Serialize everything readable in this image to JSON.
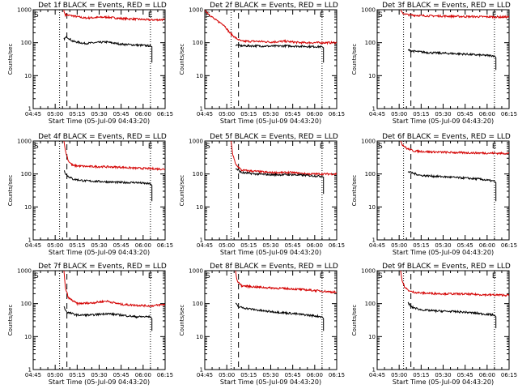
{
  "colors": {
    "events": "#000000",
    "lld": "#d40000",
    "axis": "#000000",
    "background": "#ffffff"
  },
  "chart_data": [
    {
      "type": "line",
      "title": "Det 1f BLACK = Events, RED = LLD",
      "xlabel": "Start Time (05-Jul-09 04:43:20)",
      "ylabel": "Counts/sec",
      "xticks": [
        "04:45",
        "05:00",
        "05:15",
        "05:30",
        "05:45",
        "06:00",
        "06:15"
      ],
      "yticks": [
        "1",
        "10",
        "100",
        "1000"
      ],
      "yscale": "log",
      "ylim": [
        1,
        1000
      ],
      "markers": {
        "start": "S",
        "end": "E"
      },
      "dotted_lines": [
        "05:03",
        "06:05"
      ],
      "dashed_lines": [
        "05:08"
      ],
      "series": [
        {
          "name": "LLD",
          "color": "#d40000",
          "x": [
            "05:06",
            "05:06",
            "05:07",
            "05:12",
            "05:20",
            "05:35",
            "05:45",
            "05:55",
            "06:05",
            "06:15"
          ],
          "y": [
            1000,
            880,
            700,
            650,
            560,
            600,
            540,
            520,
            490,
            500
          ]
        },
        {
          "name": "Events",
          "color": "#000000",
          "x": [
            "05:06",
            "05:08",
            "05:12",
            "05:20",
            "05:35",
            "05:45",
            "05:55",
            "06:05",
            "06:06",
            "06:06"
          ],
          "y": [
            130,
            150,
            110,
            95,
            105,
            90,
            85,
            80,
            75,
            25
          ]
        }
      ]
    },
    {
      "type": "line",
      "title": "Det 2f BLACK = Events, RED = LLD",
      "xlabel": "Start Time (05-Jul-09 04:43:20)",
      "ylabel": "Counts/sec",
      "xticks": [
        "04:45",
        "05:00",
        "05:15",
        "05:30",
        "05:45",
        "06:00",
        "06:15"
      ],
      "yticks": [
        "1",
        "10",
        "100",
        "1000"
      ],
      "yscale": "log",
      "ylim": [
        1,
        1000
      ],
      "markers": {
        "start": "S",
        "end": "E"
      },
      "dotted_lines": [
        "05:03",
        "06:05"
      ],
      "dashed_lines": [
        "05:08"
      ],
      "series": [
        {
          "name": "LLD",
          "color": "#d40000",
          "x": [
            "04:45",
            "04:47",
            "04:52",
            "04:58",
            "05:02",
            "05:06",
            "05:10",
            "05:20",
            "05:30",
            "05:40",
            "05:50",
            "06:00",
            "06:10",
            "06:15"
          ],
          "y": [
            1000,
            800,
            500,
            350,
            200,
            140,
            110,
            110,
            105,
            110,
            100,
            100,
            100,
            100
          ]
        },
        {
          "name": "Events",
          "color": "#000000",
          "x": [
            "05:06",
            "05:10",
            "05:20",
            "05:30",
            "05:40",
            "05:50",
            "06:00",
            "06:05",
            "06:06",
            "06:06"
          ],
          "y": [
            85,
            80,
            80,
            78,
            80,
            78,
            76,
            75,
            70,
            25
          ]
        }
      ]
    },
    {
      "type": "line",
      "title": "Det 3f BLACK = Events, RED = LLD",
      "xlabel": "Start Time (05-Jul-09 04:43:20)",
      "ylabel": "Counts/sec",
      "xticks": [
        "04:45",
        "05:00",
        "05:15",
        "05:30",
        "05:45",
        "06:00",
        "06:15"
      ],
      "yticks": [
        "1",
        "10",
        "100",
        "1000"
      ],
      "yscale": "log",
      "ylim": [
        1,
        1000
      ],
      "markers": {
        "start": "S",
        "end": "E"
      },
      "dotted_lines": [
        "05:03",
        "06:05"
      ],
      "dashed_lines": [
        "05:08"
      ],
      "series": [
        {
          "name": "LLD",
          "color": "#d40000",
          "x": [
            "05:01",
            "05:02",
            "05:06",
            "05:15",
            "05:30",
            "05:45",
            "06:00",
            "06:10",
            "06:15"
          ],
          "y": [
            1000,
            800,
            700,
            660,
            640,
            620,
            610,
            600,
            600
          ]
        },
        {
          "name": "Events",
          "color": "#000000",
          "x": [
            "05:06",
            "05:10",
            "05:20",
            "05:30",
            "05:45",
            "05:55",
            "06:05",
            "06:06",
            "06:06"
          ],
          "y": [
            60,
            55,
            50,
            48,
            45,
            42,
            40,
            35,
            15
          ]
        }
      ]
    },
    {
      "type": "line",
      "title": "Det 4f BLACK = Events, RED = LLD",
      "xlabel": "Start Time (05-Jul-09 04:43:20)",
      "ylabel": "Counts/sec",
      "xticks": [
        "04:45",
        "05:00",
        "05:15",
        "05:30",
        "05:45",
        "06:00",
        "06:15"
      ],
      "yticks": [
        "1",
        "10",
        "100",
        "1000"
      ],
      "yscale": "log",
      "ylim": [
        1,
        1000
      ],
      "markers": {
        "start": "S",
        "end": "E"
      },
      "dotted_lines": [
        "05:03",
        "06:05"
      ],
      "dashed_lines": [
        "05:08"
      ],
      "series": [
        {
          "name": "LLD",
          "color": "#d40000",
          "x": [
            "05:06",
            "05:07",
            "05:09",
            "05:12",
            "05:20",
            "05:35",
            "05:45",
            "05:55",
            "06:05",
            "06:15"
          ],
          "y": [
            1000,
            500,
            250,
            180,
            170,
            165,
            160,
            150,
            145,
            140
          ]
        },
        {
          "name": "Events",
          "color": "#000000",
          "x": [
            "05:06",
            "05:08",
            "05:12",
            "05:20",
            "05:35",
            "05:45",
            "05:55",
            "06:05",
            "06:06",
            "06:06"
          ],
          "y": [
            130,
            90,
            70,
            62,
            58,
            55,
            55,
            50,
            45,
            15
          ]
        }
      ]
    },
    {
      "type": "line",
      "title": "Det 5f BLACK = Events, RED = LLD",
      "xlabel": "Start Time (05-Jul-09 04:43:20)",
      "ylabel": "Counts/sec",
      "xticks": [
        "04:45",
        "05:00",
        "05:15",
        "05:30",
        "05:45",
        "06:00",
        "06:15"
      ],
      "yticks": [
        "1",
        "10",
        "100",
        "1000"
      ],
      "yscale": "log",
      "ylim": [
        1,
        1000
      ],
      "markers": {
        "start": "S",
        "end": "E"
      },
      "dotted_lines": [
        "05:03",
        "06:05"
      ],
      "dashed_lines": [
        "05:08"
      ],
      "series": [
        {
          "name": "LLD",
          "color": "#d40000",
          "x": [
            "05:03",
            "05:04",
            "05:06",
            "05:10",
            "05:20",
            "05:30",
            "05:45",
            "05:55",
            "06:05",
            "06:15"
          ],
          "y": [
            1000,
            400,
            200,
            130,
            120,
            110,
            110,
            100,
            100,
            100
          ]
        },
        {
          "name": "Events",
          "color": "#000000",
          "x": [
            "05:06",
            "05:10",
            "05:20",
            "05:30",
            "05:45",
            "05:55",
            "06:05",
            "06:06",
            "06:06"
          ],
          "y": [
            150,
            110,
            100,
            95,
            95,
            90,
            85,
            80,
            25
          ]
        }
      ]
    },
    {
      "type": "line",
      "title": "Det 6f BLACK = Events, RED = LLD",
      "xlabel": "Start Time (05-Jul-09 04:43:20)",
      "ylabel": "Counts/sec",
      "xticks": [
        "04:45",
        "05:00",
        "05:15",
        "05:30",
        "05:45",
        "06:00",
        "06:15"
      ],
      "yticks": [
        "1",
        "10",
        "100",
        "1000"
      ],
      "yscale": "log",
      "ylim": [
        1,
        1000
      ],
      "markers": {
        "start": "S",
        "end": "E"
      },
      "dotted_lines": [
        "05:03",
        "06:05"
      ],
      "dashed_lines": [
        "05:08"
      ],
      "series": [
        {
          "name": "LLD",
          "color": "#d40000",
          "x": [
            "05:01",
            "05:02",
            "05:05",
            "05:10",
            "05:20",
            "05:35",
            "05:45",
            "06:00",
            "06:15"
          ],
          "y": [
            1000,
            800,
            600,
            500,
            470,
            450,
            440,
            430,
            420
          ]
        },
        {
          "name": "Events",
          "color": "#000000",
          "x": [
            "05:06",
            "05:08",
            "05:15",
            "05:25",
            "05:35",
            "05:45",
            "05:55",
            "06:05",
            "06:06",
            "06:06"
          ],
          "y": [
            120,
            110,
            90,
            85,
            80,
            75,
            70,
            60,
            55,
            15
          ]
        }
      ]
    },
    {
      "type": "line",
      "title": "Det 7f BLACK = Events, RED = LLD",
      "xlabel": "Start Time (05-Jul-09 04:43:20)",
      "ylabel": "Counts/sec",
      "xticks": [
        "04:45",
        "05:00",
        "05:15",
        "05:30",
        "05:45",
        "06:00",
        "06:15"
      ],
      "yticks": [
        "1",
        "10",
        "100",
        "1000"
      ],
      "yscale": "log",
      "ylim": [
        1,
        1000
      ],
      "markers": {
        "start": "S",
        "end": "E"
      },
      "dotted_lines": [
        "05:03",
        "06:05"
      ],
      "dashed_lines": [
        "05:08"
      ],
      "series": [
        {
          "name": "LLD",
          "color": "#d40000",
          "x": [
            "05:06",
            "05:07",
            "05:09",
            "05:15",
            "05:25",
            "05:35",
            "05:45",
            "05:55",
            "06:05",
            "06:15"
          ],
          "y": [
            1000,
            300,
            150,
            100,
            105,
            120,
            95,
            90,
            85,
            95
          ]
        },
        {
          "name": "Events",
          "color": "#000000",
          "x": [
            "05:06",
            "05:08",
            "05:15",
            "05:25",
            "05:35",
            "05:45",
            "05:55",
            "06:05",
            "06:06",
            "06:06"
          ],
          "y": [
            80,
            55,
            45,
            45,
            50,
            45,
            40,
            40,
            35,
            15
          ]
        }
      ]
    },
    {
      "type": "line",
      "title": "Det 8f BLACK = Events, RED = LLD",
      "xlabel": "Start Time (05-Jul-09 04:43:20)",
      "ylabel": "Counts/sec",
      "xticks": [
        "04:45",
        "05:00",
        "05:15",
        "05:30",
        "05:45",
        "06:00",
        "06:15"
      ],
      "yticks": [
        "1",
        "10",
        "100",
        "1000"
      ],
      "yscale": "log",
      "ylim": [
        1,
        1000
      ],
      "markers": {
        "start": "S",
        "end": "E"
      },
      "dotted_lines": [
        "05:03",
        "06:05"
      ],
      "dashed_lines": [
        "05:08"
      ],
      "series": [
        {
          "name": "LLD",
          "color": "#d40000",
          "x": [
            "05:06",
            "05:07",
            "05:10",
            "05:20",
            "05:30",
            "05:45",
            "05:55",
            "06:05",
            "06:15"
          ],
          "y": [
            1000,
            500,
            350,
            320,
            300,
            280,
            260,
            240,
            220
          ]
        },
        {
          "name": "Events",
          "color": "#000000",
          "x": [
            "05:06",
            "05:08",
            "05:15",
            "05:25",
            "05:35",
            "05:45",
            "05:55",
            "06:05",
            "06:06",
            "06:06"
          ],
          "y": [
            100,
            80,
            70,
            60,
            55,
            50,
            45,
            40,
            35,
            15
          ]
        }
      ]
    },
    {
      "type": "line",
      "title": "Det 9f BLACK = Events, RED = LLD",
      "xlabel": "Start Time (05-Jul-09 04:43:20)",
      "ylabel": "Counts/sec",
      "xticks": [
        "04:45",
        "05:00",
        "05:15",
        "05:30",
        "05:45",
        "06:00",
        "06:15"
      ],
      "yticks": [
        "1",
        "10",
        "100",
        "1000"
      ],
      "yscale": "log",
      "ylim": [
        1,
        1000
      ],
      "markers": {
        "start": "S",
        "end": "E"
      },
      "dotted_lines": [
        "05:03",
        "06:05"
      ],
      "dashed_lines": [
        "05:08"
      ],
      "series": [
        {
          "name": "LLD",
          "color": "#d40000",
          "x": [
            "05:01",
            "05:02",
            "05:04",
            "05:08",
            "05:15",
            "05:30",
            "05:45",
            "06:00",
            "06:15"
          ],
          "y": [
            1000,
            500,
            300,
            230,
            210,
            200,
            195,
            185,
            180
          ]
        },
        {
          "name": "Events",
          "color": "#000000",
          "x": [
            "05:06",
            "05:08",
            "05:15",
            "05:25",
            "05:35",
            "05:45",
            "05:55",
            "06:05",
            "06:06",
            "06:06"
          ],
          "y": [
            110,
            80,
            65,
            60,
            58,
            55,
            50,
            45,
            40,
            18
          ]
        }
      ]
    }
  ]
}
